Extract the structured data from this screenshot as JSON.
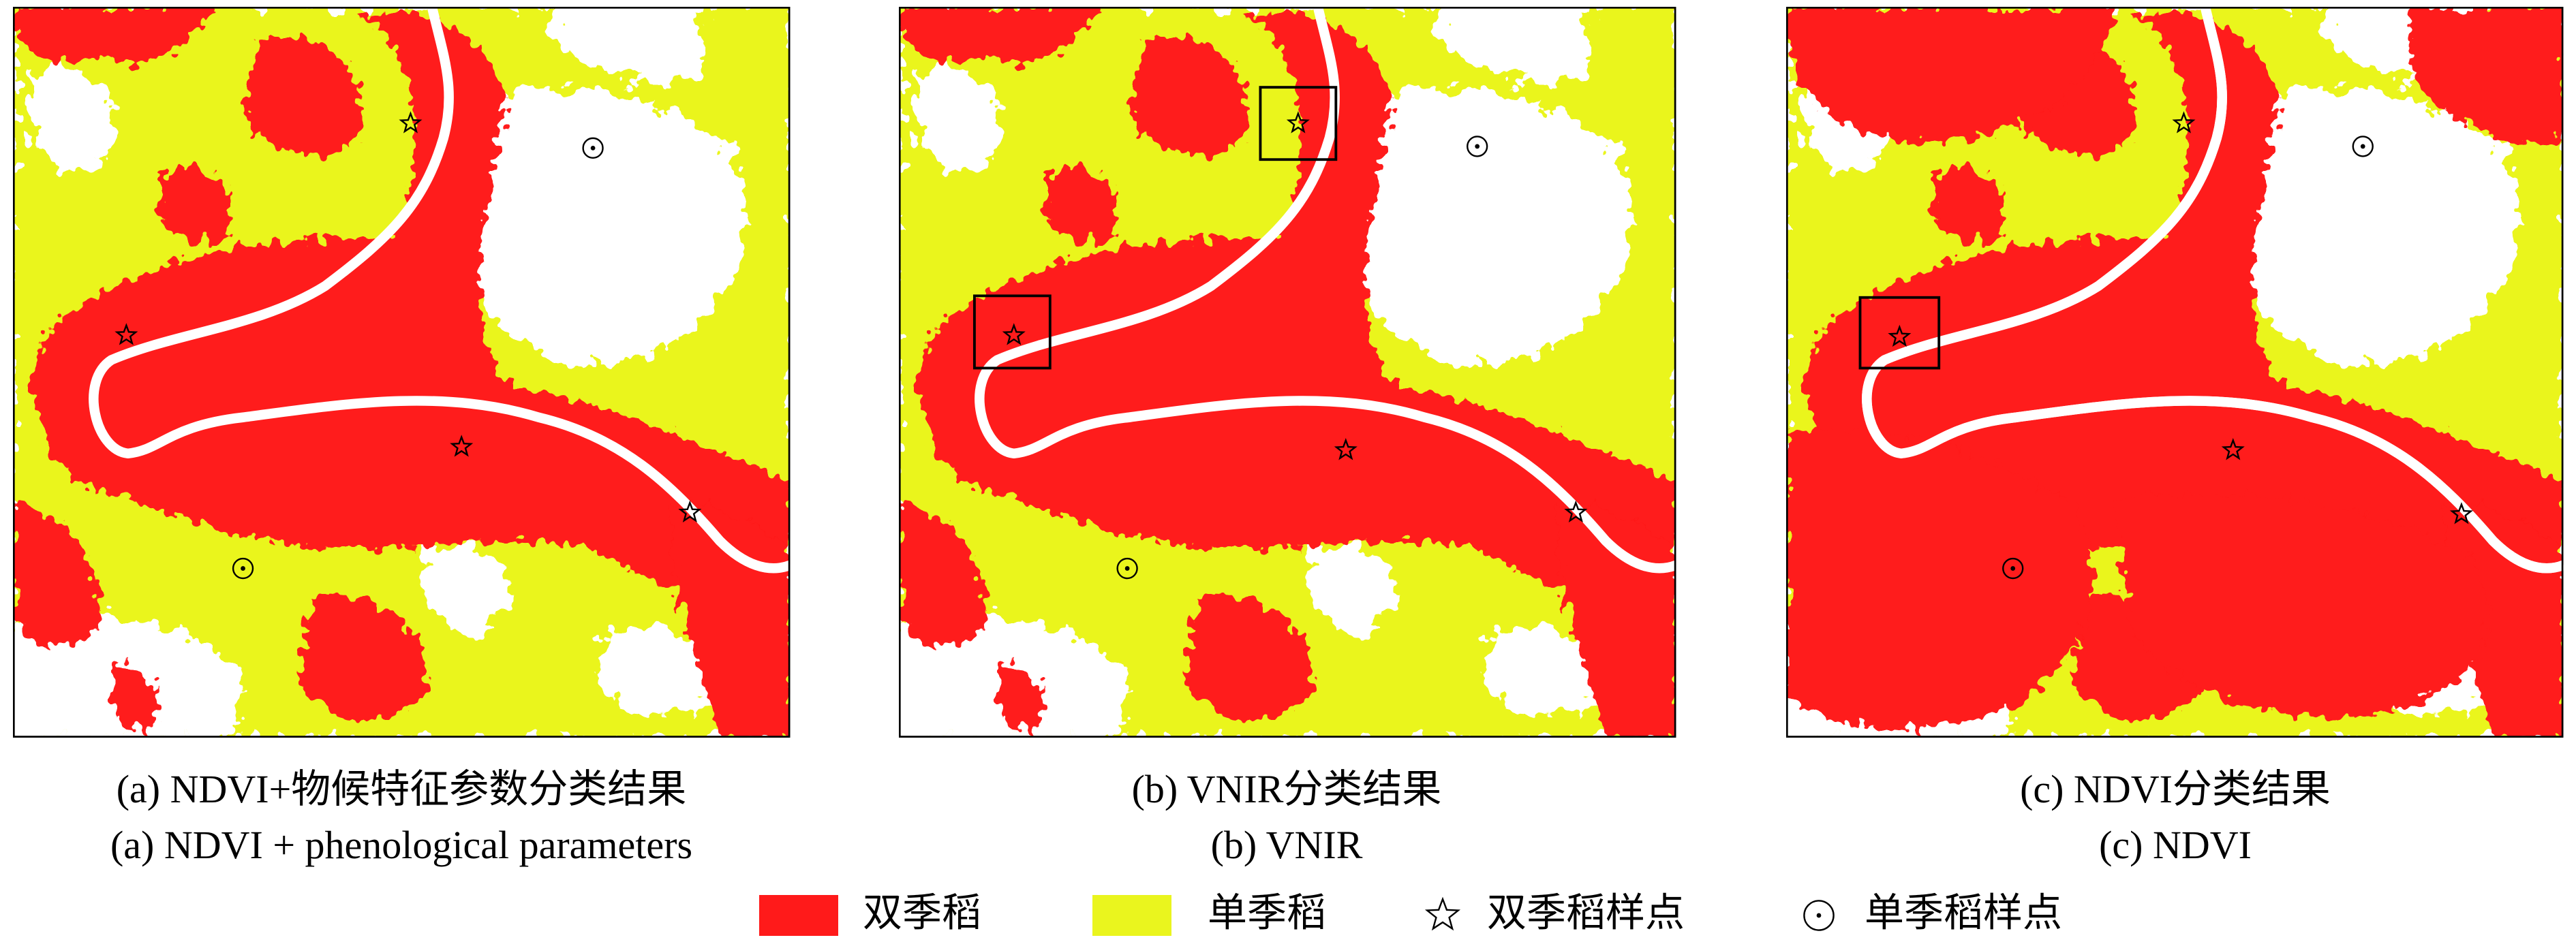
{
  "panels": [
    {
      "caption_zh": "(a) NDVI+物候特征参数分类结果",
      "caption_en": "(a) NDVI + phenological parameters"
    },
    {
      "caption_zh": "(b) VNIR分类结果",
      "caption_en": "(b) VNIR"
    },
    {
      "caption_zh": "(c) NDVI分类结果",
      "caption_en": "(c) NDVI"
    }
  ],
  "legend": [
    "双季稻",
    "单季稻",
    "双季稻样点",
    "单季稻样点"
  ]
}
